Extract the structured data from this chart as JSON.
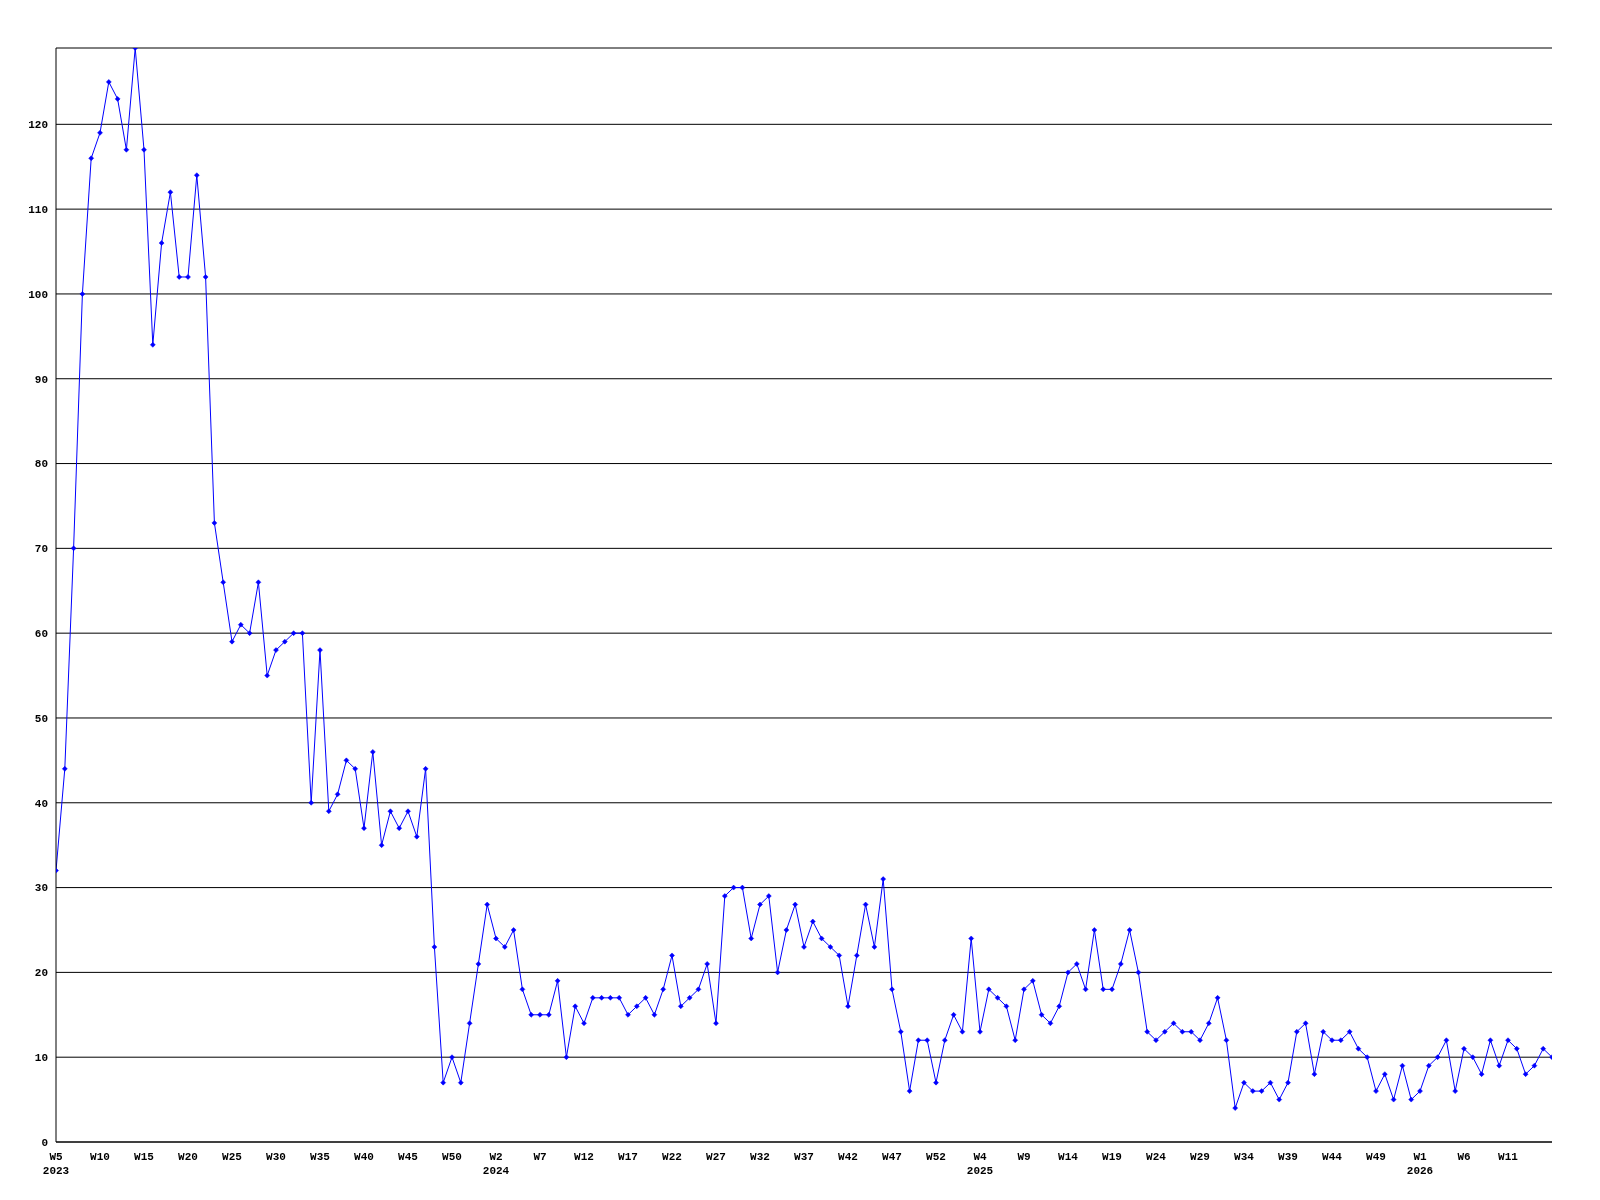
{
  "chart_data": {
    "type": "line",
    "categories": [
      "W5\n2023",
      null,
      null,
      null,
      null,
      "W10",
      null,
      null,
      null,
      null,
      "W15",
      null,
      null,
      null,
      null,
      "W20",
      null,
      null,
      null,
      null,
      "W25",
      null,
      null,
      null,
      null,
      "W30",
      null,
      null,
      null,
      null,
      "W35",
      null,
      null,
      null,
      null,
      "W40",
      null,
      null,
      null,
      null,
      "W45",
      null,
      null,
      null,
      null,
      "W50",
      null,
      null,
      null,
      null,
      "W2\n2024",
      null,
      null,
      null,
      null,
      "W7",
      null,
      null,
      null,
      null,
      "W12",
      null,
      null,
      null,
      null,
      "W17",
      null,
      null,
      null,
      null,
      "W22",
      null,
      null,
      null,
      null,
      "W27",
      null,
      null,
      null,
      null,
      "W32",
      null,
      null,
      null,
      null,
      "W37",
      null,
      null,
      null,
      null,
      "W42",
      null,
      null,
      null,
      null,
      "W47",
      null,
      null,
      null,
      null,
      "W52",
      null,
      null,
      null,
      null,
      "W4\n2025",
      null,
      null,
      null,
      null,
      "W9",
      null,
      null,
      null,
      null,
      "W14",
      null,
      null,
      null,
      null,
      "W19",
      null,
      null,
      null,
      null,
      "W24",
      null,
      null,
      null,
      null,
      "W29",
      null,
      null,
      null,
      null,
      "W34",
      null,
      null,
      null,
      null,
      "W39",
      null,
      null,
      null,
      null,
      "W44",
      null,
      null,
      null,
      null,
      "W49",
      null,
      null,
      null,
      null,
      "W1\n2026",
      null,
      null,
      null,
      null,
      "W6",
      null,
      null,
      null,
      null,
      "W11",
      null,
      null,
      null,
      null,
      null
    ],
    "series": [
      {
        "color": "#0000ff",
        "values": [
          32,
          44,
          70,
          100,
          116,
          119,
          125,
          123,
          117,
          129,
          117,
          94,
          106,
          112,
          102,
          102,
          114,
          102,
          73,
          66,
          59,
          61,
          60,
          66,
          55,
          58,
          59,
          60,
          60,
          40,
          58,
          39,
          41,
          45,
          44,
          37,
          46,
          35,
          39,
          37,
          39,
          36,
          44,
          23,
          7,
          10,
          7,
          14,
          21,
          28,
          24,
          23,
          25,
          18,
          15,
          15,
          15,
          19,
          10,
          16,
          14,
          17,
          17,
          17,
          17,
          15,
          16,
          17,
          15,
          18,
          22,
          16,
          17,
          18,
          21,
          14,
          29,
          30,
          30,
          24,
          28,
          29,
          20,
          25,
          28,
          23,
          26,
          24,
          23,
          22,
          16,
          22,
          28,
          23,
          31,
          18,
          13,
          6,
          12,
          12,
          7,
          12,
          15,
          13,
          24,
          13,
          18,
          17,
          16,
          12,
          18,
          19,
          15,
          14,
          16,
          20,
          21,
          18,
          25,
          18,
          18,
          21,
          25,
          20,
          13,
          12,
          13,
          14,
          13,
          13,
          12,
          14,
          17,
          12,
          4,
          7,
          6,
          6,
          7,
          5,
          7,
          13,
          14,
          8,
          13,
          12,
          12,
          13,
          11,
          10,
          6,
          8,
          5,
          9,
          5,
          6,
          9,
          10,
          12,
          6,
          11,
          10,
          8,
          12,
          9,
          12,
          11,
          8,
          9,
          11,
          10
        ]
      }
    ],
    "ylim": [
      0,
      129
    ],
    "yticks": [
      0,
      10,
      20,
      30,
      40,
      50,
      60,
      70,
      80,
      90,
      100,
      110,
      120
    ],
    "grid": "y",
    "marker": "diamond",
    "legend": false
  }
}
